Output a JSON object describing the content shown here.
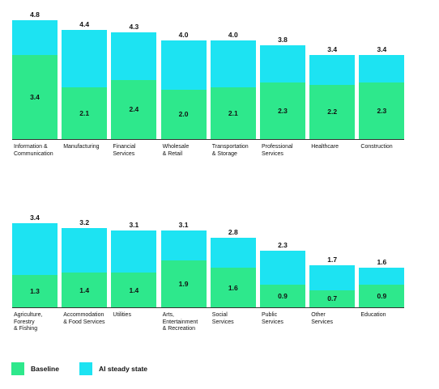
{
  "chart_data": [
    {
      "type": "bar",
      "categories": [
        "Information &\nCommunication",
        "Manufacturing",
        "Financial\nServices",
        "Wholesale\n& Retail",
        "Transportation\n& Storage",
        "Professional\nServices",
        "Healthcare",
        "Construction"
      ],
      "series": [
        {
          "name": "AI steady state",
          "color": "#1de3f2",
          "values": [
            4.8,
            4.4,
            4.3,
            4.0,
            4.0,
            3.8,
            3.4,
            3.4
          ],
          "value_labels": [
            "4.8",
            "4.4",
            "4.3",
            "4.0",
            "4.0",
            "3.8",
            "3.4",
            "3.4"
          ]
        },
        {
          "name": "Baseline",
          "color": "#2ee88c",
          "values": [
            3.4,
            2.1,
            2.4,
            2.0,
            2.1,
            2.3,
            2.2,
            2.3
          ],
          "value_labels": [
            "3.4",
            "2.1",
            "2.4",
            "2.0",
            "2.1",
            "2.3",
            "2.2",
            "2.3"
          ]
        }
      ],
      "ylim": [
        0,
        5
      ]
    },
    {
      "type": "bar",
      "categories": [
        "Agriculture,\nForestry\n& Fishing",
        "Accommodation\n& Food Services",
        "Utilities",
        "Arts,\nEntertainment\n& Recreation",
        "Social\nServices",
        "Public\nServices",
        "Other\nServices",
        "Education"
      ],
      "series": [
        {
          "color": "#1de3f2",
          "values": [
            3.4,
            3.2,
            3.1,
            3.1,
            2.8,
            2.3,
            1.7,
            1.6
          ],
          "value_labels": [
            "3.4",
            "3.2",
            "3.1",
            "3.1",
            "2.8",
            "2.3",
            "1.7",
            "1.6"
          ]
        },
        {
          "color": "#2ee88c",
          "values": [
            1.3,
            1.4,
            1.4,
            1.9,
            1.6,
            0.9,
            0.7,
            0.9
          ],
          "value_labels": [
            "1.3",
            "1.4",
            "1.4",
            "1.9",
            "1.6",
            "0.9",
            "0.7",
            "0.9"
          ]
        }
      ],
      "ylim": [
        0,
        5
      ]
    }
  ]
}
